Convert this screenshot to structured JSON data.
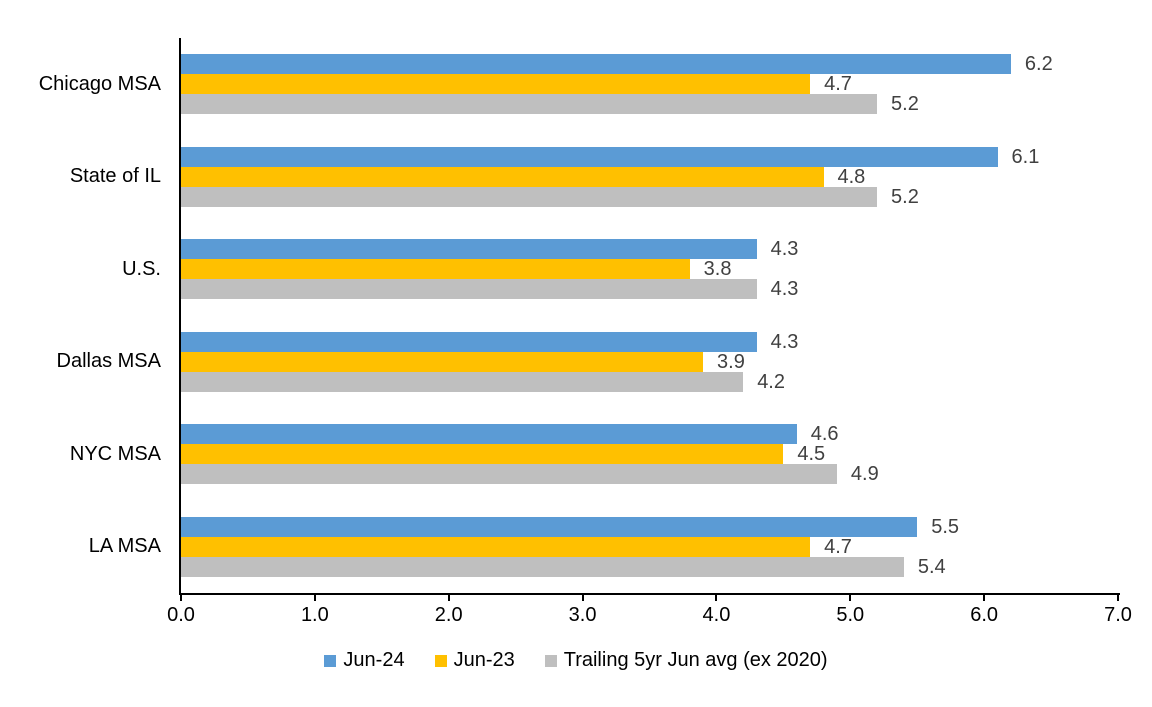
{
  "chart_data": {
    "type": "bar",
    "orientation": "horizontal",
    "title": "",
    "categories": [
      "Chicago MSA",
      "State of IL",
      "U.S.",
      "Dallas MSA",
      "NYC MSA",
      "LA MSA"
    ],
    "series": [
      {
        "name": "Jun-24",
        "color": "#5B9BD5",
        "values": [
          6.2,
          6.1,
          4.3,
          4.3,
          4.6,
          5.5
        ]
      },
      {
        "name": "Jun-23",
        "color": "#FFC000",
        "values": [
          4.7,
          4.8,
          3.8,
          3.9,
          4.5,
          4.7
        ]
      },
      {
        "name": "Trailing 5yr Jun avg (ex 2020)",
        "color": "#BFBFBF",
        "values": [
          5.2,
          5.2,
          4.3,
          4.2,
          4.9,
          5.4
        ]
      }
    ],
    "xlim": [
      0,
      7
    ],
    "x_ticks": [
      "0.0",
      "1.0",
      "2.0",
      "3.0",
      "4.0",
      "5.0",
      "6.0",
      "7.0"
    ],
    "value_labels_shown": true,
    "value_label_decimals": 1,
    "grid": false,
    "legend_position": "bottom"
  },
  "colors": {
    "axis": "#000000",
    "value_label": "#404040",
    "category_label": "#000000",
    "background": "#FFFFFF"
  }
}
